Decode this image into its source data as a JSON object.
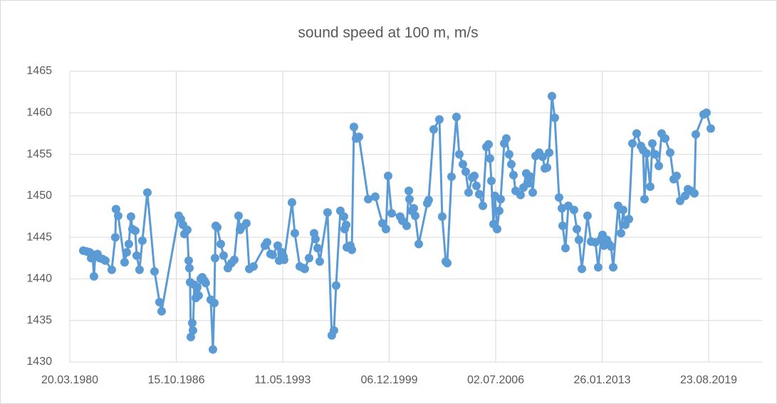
{
  "chart_data": {
    "type": "line",
    "title": "sound speed at 100 m, m/s",
    "color": "#5b9bd5",
    "grid": true,
    "ylim": [
      1430,
      1465
    ],
    "yticks": [
      1430,
      1435,
      1440,
      1445,
      1450,
      1455,
      1460,
      1465
    ],
    "xlim": [
      "1980-03-20",
      "2022-12-09"
    ],
    "xticks": [
      {
        "value": "1980-03-20",
        "label": "20.03.1980"
      },
      {
        "value": "1986-10-15",
        "label": "15.10.1986"
      },
      {
        "value": "1993-05-11",
        "label": "11.05.1993"
      },
      {
        "value": "1999-12-06",
        "label": "06.12.1999"
      },
      {
        "value": "2006-07-02",
        "label": "02.07.2006"
      },
      {
        "value": "2013-01-26",
        "label": "26.01.2013"
      },
      {
        "value": "2019-08-23",
        "label": "23.08.2019"
      }
    ],
    "x": [
      "1981-01-18",
      "1981-04-09",
      "1981-06-12",
      "1981-07-14",
      "1981-08-15",
      "1981-09-16",
      "1981-10-18",
      "1981-12-05",
      "1982-01-22",
      "1982-03-28",
      "1982-05-31",
      "1982-10-22",
      "1983-01-10",
      "1983-01-26",
      "1983-03-15",
      "1983-08-07",
      "1983-09-24",
      "1983-11-11",
      "1983-12-29",
      "1984-01-30",
      "1984-04-04",
      "1984-05-06",
      "1984-07-09",
      "1984-09-11",
      "1985-01-02",
      "1985-06-12",
      "1985-10-02",
      "1985-11-19",
      "1986-12-09",
      "1987-01-26",
      "1987-03-15",
      "1987-04-17",
      "1987-06-20",
      "1987-07-22",
      "1987-08-07",
      "1987-08-23",
      "1987-09-08",
      "1987-10-10",
      "1987-10-26",
      "1987-11-27",
      "1987-12-29",
      "1988-01-30",
      "1988-03-02",
      "1988-04-20",
      "1988-05-22",
      "1988-07-08",
      "1988-08-09",
      "1988-11-30",
      "1989-01-18",
      "1989-02-19",
      "1989-03-07",
      "1989-03-23",
      "1989-04-25",
      "1989-07-14",
      "1989-09-16",
      "1989-12-21",
      "1990-03-11",
      "1990-05-15",
      "1990-08-19",
      "1990-09-20",
      "1990-10-22",
      "1991-02-11",
      "1991-04-17",
      "1991-07-22",
      "1992-04-04",
      "1992-05-22",
      "1992-08-09",
      "1992-09-27",
      "1993-01-18",
      "1993-02-19",
      "1993-04-25",
      "1993-05-27",
      "1993-06-11",
      "1993-12-05",
      "1994-02-07",
      "1994-05-30",
      "1994-08-19",
      "1994-09-20",
      "1994-12-25",
      "1995-04-17",
      "1995-05-18",
      "1995-07-06",
      "1995-08-23",
      "1996-02-15",
      "1996-05-21",
      "1996-07-08",
      "1996-08-26",
      "1996-11-30",
      "1997-02-19",
      "1997-03-07",
      "1997-04-09",
      "1997-04-25",
      "1997-07-14",
      "1997-08-15",
      "1997-10-02",
      "1997-11-19",
      "1998-01-22",
      "1998-08-19",
      "1999-01-26",
      "1999-07-06",
      "1999-09-24",
      "1999-11-11",
      "2000-01-30",
      "2000-08-09",
      "2000-09-27",
      "2001-01-02",
      "2001-02-19",
      "2001-03-07",
      "2001-04-24",
      "2001-06-11",
      "2001-07-14",
      "2001-10-02",
      "2002-04-12",
      "2002-05-14",
      "2002-09-04",
      "2003-01-10",
      "2003-03-15",
      "2003-06-03",
      "2003-07-06",
      "2003-10-10",
      "2004-01-30",
      "2004-04-03",
      "2004-06-22",
      "2004-08-26",
      "2004-10-29",
      "2005-01-18",
      "2005-03-07",
      "2005-04-24",
      "2005-06-27",
      "2005-09-16",
      "2005-12-05",
      "2006-01-22",
      "2006-02-23",
      "2006-03-27",
      "2006-05-14",
      "2006-06-15",
      "2006-08-03",
      "2006-09-20",
      "2006-10-22",
      "2007-01-10",
      "2007-02-27",
      "2007-05-02",
      "2007-06-19",
      "2007-08-07",
      "2007-09-24",
      "2008-01-14",
      "2008-03-19",
      "2008-05-21",
      "2008-07-08",
      "2008-08-26",
      "2008-10-14",
      "2008-12-17",
      "2009-03-07",
      "2009-05-26",
      "2009-07-14",
      "2009-08-31",
      "2009-10-18",
      "2009-12-21",
      "2010-02-23",
      "2010-05-30",
      "2010-08-03",
      "2010-08-19",
      "2010-10-22",
      "2010-12-25",
      "2011-05-02",
      "2011-07-06",
      "2011-08-23",
      "2011-10-26",
      "2012-03-02",
      "2012-05-21",
      "2012-08-26",
      "2012-10-29",
      "2013-01-02",
      "2013-02-03",
      "2013-03-07",
      "2013-05-10",
      "2013-06-27",
      "2013-08-15",
      "2013-10-02",
      "2014-01-22",
      "2014-03-27",
      "2014-05-14",
      "2014-07-01",
      "2014-09-20",
      "2014-12-09",
      "2015-03-15",
      "2015-06-19",
      "2015-08-07",
      "2015-09-08",
      "2015-10-26",
      "2016-01-14",
      "2016-03-02",
      "2016-05-06",
      "2016-07-26",
      "2016-09-27",
      "2016-12-17",
      "2017-04-08",
      "2017-06-27",
      "2017-08-31",
      "2017-11-19",
      "2018-03-11",
      "2018-05-14",
      "2018-07-18",
      "2018-10-06",
      "2018-11-07",
      "2019-05-02",
      "2019-07-06",
      "2019-10-10"
    ],
    "values": [
      1443.4,
      1443.3,
      1443.2,
      1442.5,
      1442.8,
      1440.3,
      1442.9,
      1443.0,
      1442.5,
      1442.4,
      1442.2,
      1441.1,
      1445.0,
      1448.4,
      1447.6,
      1442.0,
      1443.2,
      1444.2,
      1447.5,
      1446.0,
      1445.8,
      1442.8,
      1441.1,
      1444.6,
      1450.4,
      1440.9,
      1437.2,
      1436.1,
      1447.6,
      1447.2,
      1446.5,
      1445.4,
      1445.9,
      1442.2,
      1441.3,
      1439.6,
      1433.0,
      1434.7,
      1433.8,
      1439.3,
      1437.7,
      1439.0,
      1438.0,
      1440.0,
      1440.2,
      1439.8,
      1439.5,
      1437.5,
      1431.5,
      1437.1,
      1442.5,
      1446.4,
      1446.2,
      1444.2,
      1442.8,
      1441.3,
      1441.9,
      1442.3,
      1447.6,
      1445.9,
      1446.2,
      1446.7,
      1441.2,
      1441.5,
      1444.0,
      1444.4,
      1443.0,
      1442.9,
      1444.0,
      1442.2,
      1443.2,
      1442.7,
      1442.3,
      1449.2,
      1445.5,
      1441.5,
      1441.3,
      1441.2,
      1442.5,
      1445.5,
      1444.8,
      1443.7,
      1442.1,
      1448.0,
      1433.2,
      1433.8,
      1439.2,
      1448.2,
      1447.5,
      1446.0,
      1446.5,
      1443.8,
      1444.0,
      1443.5,
      1458.3,
      1456.9,
      1457.1,
      1449.6,
      1449.9,
      1446.7,
      1446.0,
      1452.4,
      1447.9,
      1447.5,
      1447.0,
      1446.4,
      1450.6,
      1449.6,
      1448.2,
      1448.5,
      1447.6,
      1444.2,
      1449.1,
      1449.5,
      1458.0,
      1459.2,
      1447.5,
      1442.1,
      1441.9,
      1452.3,
      1459.5,
      1455.0,
      1453.8,
      1452.9,
      1450.4,
      1452.2,
      1452.4,
      1451.2,
      1450.2,
      1448.8,
      1455.9,
      1456.2,
      1454.5,
      1451.8,
      1446.6,
      1450.0,
      1446.0,
      1448.2,
      1449.6,
      1456.3,
      1456.9,
      1455.0,
      1453.8,
      1452.5,
      1450.6,
      1450.1,
      1451.0,
      1452.7,
      1451.5,
      1452.3,
      1450.4,
      1454.8,
      1455.2,
      1454.7,
      1453.3,
      1453.4,
      1455.2,
      1462.0,
      1459.4,
      1449.8,
      1448.5,
      1446.4,
      1443.7,
      1448.8,
      1448.3,
      1446.0,
      1444.7,
      1441.2,
      1447.6,
      1444.5,
      1444.4,
      1441.4,
      1444.8,
      1445.3,
      1444.0,
      1444.7,
      1444.2,
      1443.9,
      1441.4,
      1448.8,
      1445.5,
      1448.3,
      1446.5,
      1447.2,
      1456.3,
      1457.5,
      1456.0,
      1455.5,
      1449.6,
      1455.1,
      1451.1,
      1456.3,
      1455.0,
      1453.6,
      1457.5,
      1456.9,
      1455.2,
      1452.0,
      1452.4,
      1449.4,
      1450.0,
      1450.8,
      1450.6,
      1450.3,
      1457.4,
      1459.8,
      1460.0,
      1458.1
    ]
  }
}
